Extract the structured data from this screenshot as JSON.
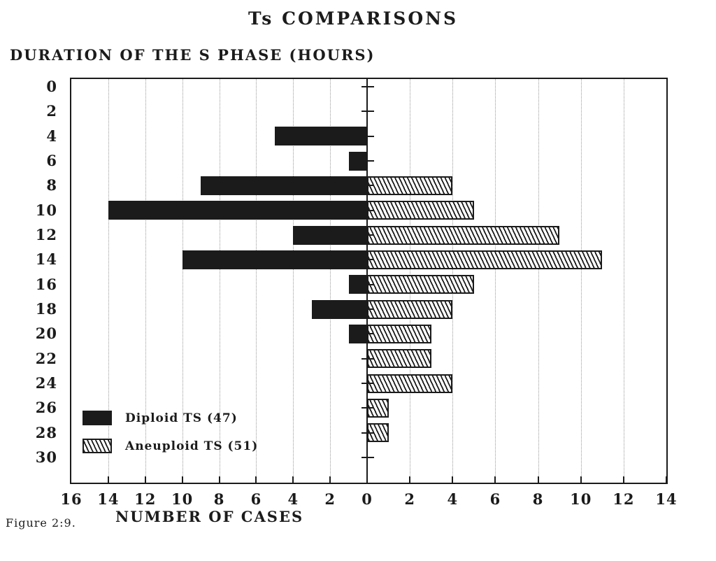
{
  "title": "Ts COMPARISONS",
  "y_axis_title": "DURATION OF THE S PHASE (HOURS)",
  "x_axis_title": "NUMBER OF CASES",
  "figure_caption": "Figure 2:9.",
  "legend": [
    {
      "label": "Diploid TS (47)",
      "pattern": "solid"
    },
    {
      "label": "Aneuploid TS (51)",
      "pattern": "hatched"
    }
  ],
  "colors": {
    "ink": "#1b1b1b",
    "paper": "#ffffff",
    "grid": "#9a9a9a"
  },
  "chart_data": {
    "type": "bar",
    "orientation": "horizontal-bidirectional",
    "title": "Ts COMPARISONS",
    "xlabel": "NUMBER OF CASES",
    "ylabel": "DURATION OF THE S PHASE (HOURS)",
    "grid": "dotted vertical gridlines at every 2 cases",
    "legend_position": "bottom-left inside plot",
    "y_ticks_hours": [
      0,
      2,
      4,
      6,
      8,
      10,
      12,
      14,
      16,
      18,
      20,
      22,
      24,
      26,
      28,
      30
    ],
    "x_ticks_left": [
      16,
      14,
      12,
      10,
      8,
      6,
      4,
      2,
      0
    ],
    "x_ticks_right": [
      2,
      4,
      6,
      8,
      10,
      12,
      14
    ],
    "xlim_left": 16,
    "xlim_right": 14,
    "series": [
      {
        "name": "Diploid TS (47)",
        "side": "left",
        "pattern": "solid"
      },
      {
        "name": "Aneuploid TS (51)",
        "side": "right",
        "pattern": "hatched"
      }
    ],
    "rows": [
      {
        "hour": 0,
        "diploid": 0,
        "aneuploid": 0
      },
      {
        "hour": 2,
        "diploid": 0,
        "aneuploid": 0
      },
      {
        "hour": 4,
        "diploid": 5,
        "aneuploid": 0
      },
      {
        "hour": 6,
        "diploid": 1,
        "aneuploid": 0
      },
      {
        "hour": 8,
        "diploid": 9,
        "aneuploid": 4
      },
      {
        "hour": 10,
        "diploid": 14,
        "aneuploid": 5
      },
      {
        "hour": 12,
        "diploid": 4,
        "aneuploid": 9
      },
      {
        "hour": 14,
        "diploid": 10,
        "aneuploid": 11
      },
      {
        "hour": 16,
        "diploid": 1,
        "aneuploid": 5
      },
      {
        "hour": 18,
        "diploid": 3,
        "aneuploid": 4
      },
      {
        "hour": 20,
        "diploid": 1,
        "aneuploid": 3
      },
      {
        "hour": 22,
        "diploid": 0,
        "aneuploid": 3
      },
      {
        "hour": 24,
        "diploid": 0,
        "aneuploid": 4
      },
      {
        "hour": 26,
        "diploid": 0,
        "aneuploid": 1
      },
      {
        "hour": 28,
        "diploid": 0,
        "aneuploid": 1
      },
      {
        "hour": 30,
        "diploid": 0,
        "aneuploid": 0
      }
    ]
  }
}
